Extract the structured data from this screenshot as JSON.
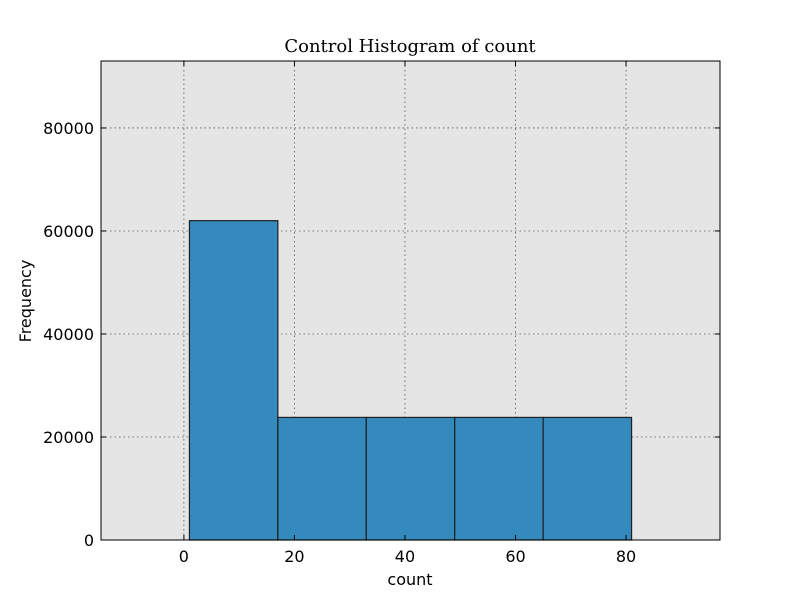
{
  "chart_data": {
    "type": "bar",
    "title": "Control Histogram of count",
    "xlabel": "count",
    "ylabel": "Frequency",
    "bins": [
      {
        "start": 1,
        "end": 17,
        "value": 62000
      },
      {
        "start": 17,
        "end": 33,
        "value": 23800
      },
      {
        "start": 33,
        "end": 49,
        "value": 23800
      },
      {
        "start": 49,
        "end": 65,
        "value": 23800
      },
      {
        "start": 65,
        "end": 81,
        "value": 23800
      }
    ],
    "xlim": [
      -15,
      97
    ],
    "ylim": [
      0,
      93000
    ],
    "xticks": [
      0,
      20,
      40,
      60,
      80
    ],
    "xtick_labels": [
      "0",
      "20",
      "40",
      "60",
      "80"
    ],
    "yticks": [
      0,
      20000,
      40000,
      60000,
      80000
    ],
    "ytick_labels": [
      "0",
      "20000",
      "40000",
      "60000",
      "80000"
    ],
    "grid": true,
    "colors": {
      "bar": "#348abd",
      "background": "#e5e5e5"
    }
  }
}
